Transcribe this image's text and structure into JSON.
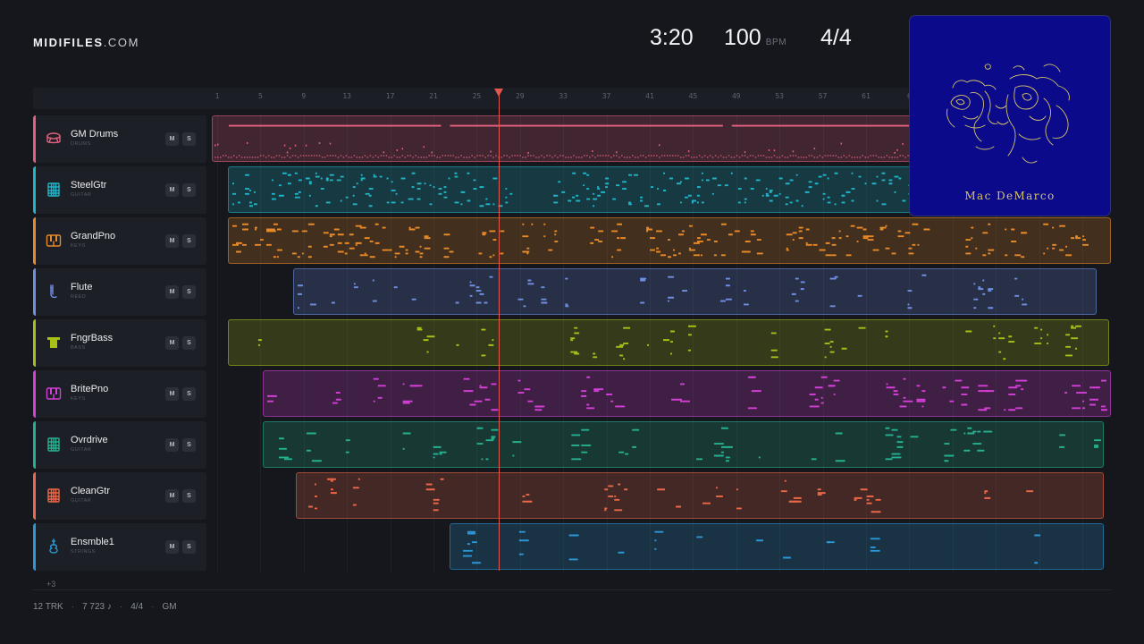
{
  "brand": {
    "name": "MIDIFILES",
    "domain": ".COM"
  },
  "header": {
    "time": "3:20",
    "bpm": "100",
    "bpm_unit": "BPM",
    "time_signature": "4/4"
  },
  "ruler": {
    "bars": [
      "1",
      "5",
      "9",
      "13",
      "17",
      "21",
      "25",
      "29",
      "33",
      "37",
      "41",
      "45",
      "49",
      "53",
      "57",
      "61",
      "6"
    ]
  },
  "playhead": {
    "bar": 27
  },
  "colors": {
    "background": "#15171c",
    "playhead": "#e2564e",
    "drums": "#e0607e",
    "steel": "#1fb4c8",
    "piano": "#e88a28",
    "flute": "#6f8fe6",
    "bass": "#a7c018",
    "brite": "#d43fd8",
    "ovr": "#25b08f",
    "clean": "#ec6848",
    "ens": "#2a98d8"
  },
  "tracks": [
    {
      "name": "GM Drums",
      "category": "DRUMS",
      "icon": "drum-icon",
      "mute": "M",
      "solo": "S",
      "color": "#e0607e",
      "region_start_bar": 1,
      "region_end_bar": 81
    },
    {
      "name": "SteelGtr",
      "category": "GUITAR",
      "icon": "guitar-fretboard-icon",
      "mute": "M",
      "solo": "S",
      "color": "#1fb4c8",
      "region_start_bar": 2.5,
      "region_end_bar": 81
    },
    {
      "name": "GrandPno",
      "category": "KEYS",
      "icon": "piano-keys-icon",
      "mute": "M",
      "solo": "S",
      "color": "#e88a28",
      "region_start_bar": 2.5,
      "region_end_bar": 84
    },
    {
      "name": "Flute",
      "category": "REED",
      "icon": "flute-icon",
      "mute": "M",
      "solo": "S",
      "color": "#6f8fe6",
      "region_start_bar": 8.5,
      "region_end_bar": 82.3
    },
    {
      "name": "FngrBass",
      "category": "BASS",
      "icon": "bass-icon",
      "mute": "M",
      "solo": "S",
      "color": "#a7c018",
      "region_start_bar": 2.5,
      "region_end_bar": 83.5
    },
    {
      "name": "BritePno",
      "category": "KEYS",
      "icon": "piano-keys-icon",
      "mute": "M",
      "solo": "S",
      "color": "#d43fd8",
      "region_start_bar": 5.7,
      "region_end_bar": 84
    },
    {
      "name": "Ovrdrive",
      "category": "GUITAR",
      "icon": "guitar-fretboard-icon",
      "mute": "M",
      "solo": "S",
      "color": "#25b08f",
      "region_start_bar": 5.7,
      "region_end_bar": 83
    },
    {
      "name": "CleanGtr",
      "category": "GUITAR",
      "icon": "guitar-fretboard-icon",
      "mute": "M",
      "solo": "S",
      "color": "#ec6848",
      "region_start_bar": 8.8,
      "region_end_bar": 83
    },
    {
      "name": "Ensmble1",
      "category": "STRINGS",
      "icon": "violin-icon",
      "mute": "M",
      "solo": "S",
      "color": "#2a98d8",
      "region_start_bar": 23,
      "region_end_bar": 83
    }
  ],
  "more_tracks": "+3",
  "footer": {
    "tracks": "12 TRK",
    "notes": "7 723 ♪",
    "signature": "4/4",
    "format": "GM"
  },
  "album": {
    "artist": "Mac DeMarco"
  }
}
